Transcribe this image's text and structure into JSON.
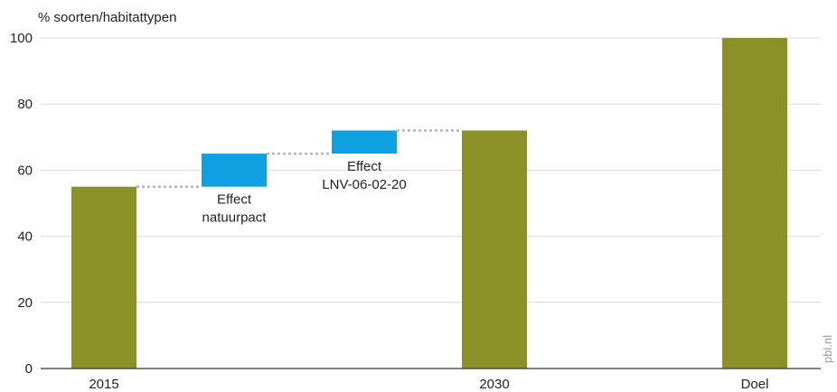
{
  "chart_data": {
    "type": "bar",
    "ylabel": "% soorten/habitattypen",
    "ylim": [
      0,
      100
    ],
    "yticks": [
      0,
      20,
      40,
      60,
      80,
      100
    ],
    "grid": true,
    "bars": [
      {
        "category": "2015",
        "kind": "total",
        "start": 0,
        "end": 55,
        "label": ""
      },
      {
        "category": "",
        "kind": "increment",
        "start": 55,
        "end": 65,
        "label": [
          "Effect",
          "natuurpact"
        ]
      },
      {
        "category": "",
        "kind": "increment",
        "start": 65,
        "end": 72,
        "label": [
          "Effect",
          "LNV-06-02-20"
        ]
      },
      {
        "category": "2030",
        "kind": "total",
        "start": 0,
        "end": 72,
        "label": ""
      },
      {
        "category": "Doel",
        "kind": "total",
        "start": 0,
        "end": 100,
        "label": ""
      }
    ],
    "colors": {
      "total": "#8b9127",
      "increment": "#0ea0e0",
      "grid": "#d9d9d9",
      "connector": "#b5b5b5",
      "axis": "#333333"
    }
  },
  "credit": "pbl.nl"
}
